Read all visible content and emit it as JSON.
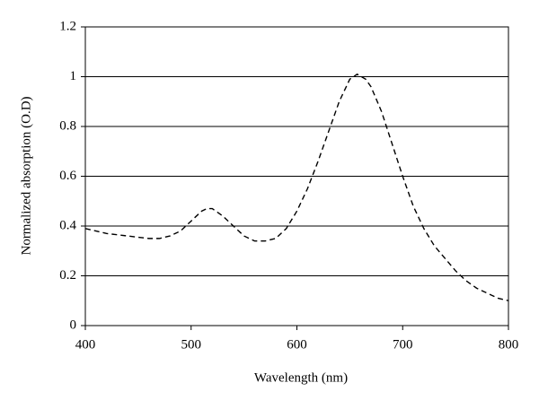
{
  "chart_data": {
    "type": "line",
    "x_label": "Wavelength (nm)",
    "y_label": "Normalized absorption (O.D)",
    "x": [
      400,
      420,
      440,
      460,
      470,
      480,
      490,
      500,
      510,
      515,
      520,
      530,
      540,
      550,
      560,
      570,
      580,
      590,
      600,
      610,
      620,
      630,
      640,
      650,
      657,
      665,
      670,
      680,
      690,
      700,
      710,
      720,
      730,
      740,
      750,
      760,
      770,
      780,
      790,
      800
    ],
    "series": [
      {
        "color": "#000000",
        "line_style": "dashed",
        "values": [
          0.39,
          0.37,
          0.36,
          0.35,
          0.35,
          0.36,
          0.38,
          0.42,
          0.46,
          0.47,
          0.47,
          0.44,
          0.4,
          0.36,
          0.34,
          0.34,
          0.35,
          0.39,
          0.46,
          0.55,
          0.66,
          0.78,
          0.9,
          0.99,
          1.01,
          0.99,
          0.96,
          0.86,
          0.73,
          0.6,
          0.48,
          0.39,
          0.32,
          0.27,
          0.22,
          0.18,
          0.15,
          0.13,
          0.11,
          0.1
        ]
      }
    ],
    "xlim": [
      400,
      800
    ],
    "xticks": [
      400,
      500,
      600,
      700,
      800
    ],
    "ylim": [
      0,
      1.2
    ],
    "yticks": [
      0,
      0.2,
      0.4,
      0.6,
      0.8,
      1,
      1.2
    ],
    "grid": true
  }
}
